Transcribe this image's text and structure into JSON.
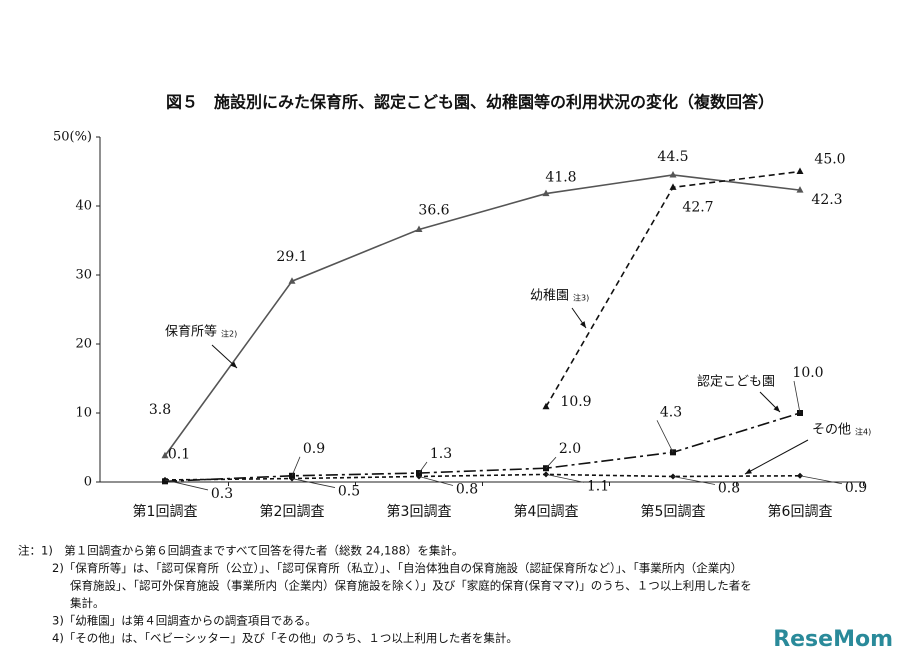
{
  "chart_data": {
    "type": "line",
    "title": "図５　施設別にみた保育所、認定こども園、幼稚園等の利用状況の変化（複数回答）",
    "categories": [
      "第1回調査",
      "第2回調査",
      "第3回調査",
      "第4回調査",
      "第5回調査",
      "第6回調査"
    ],
    "ylim": [
      0,
      50
    ],
    "yticks": [
      0,
      10,
      20,
      30,
      40,
      {
        "value": 50,
        "label": "50(%)"
      }
    ],
    "series": [
      {
        "name": "保育所等",
        "note": "注2)",
        "color": "#555555",
        "dash": "solid",
        "marker": "triangle",
        "values": [
          3.8,
          29.1,
          36.6,
          41.8,
          44.5,
          42.3
        ],
        "value_labels": [
          "3.8",
          "29.1",
          "36.6",
          "41.8",
          "44.5",
          "42.3"
        ]
      },
      {
        "name": "幼稚園",
        "note": "注3)",
        "color": "#111111",
        "dash": "dashed",
        "marker": "triangle",
        "values": [
          null,
          null,
          null,
          10.9,
          42.7,
          45.0
        ],
        "value_labels": [
          null,
          null,
          null,
          "10.9",
          "42.7",
          "45.0"
        ]
      },
      {
        "name": "認定こども園",
        "color": "#111111",
        "dash": "dashdot",
        "marker": "square",
        "values": [
          0.1,
          0.9,
          1.3,
          2.0,
          4.3,
          10.0
        ],
        "value_labels": [
          "0.1",
          "0.9",
          "1.3",
          "2.0",
          "4.3",
          "10.0"
        ]
      },
      {
        "name": "その他",
        "note": "注4)",
        "color": "#111111",
        "dash": "dotted",
        "marker": "diamond",
        "values": [
          0.3,
          0.5,
          0.8,
          1.1,
          0.8,
          0.9
        ],
        "value_labels": [
          "0.3",
          "0.5",
          "0.8",
          "1.1",
          "0.8",
          "0.9"
        ]
      }
    ],
    "notes": [
      "注：1)　第１回調査から第６回調査まですべて回答を得た者（総数 24,188）を集計。",
      "2)「保育所等」は、「認可保育所（公立）」、「認可保育所（私立）」、「自治体独自の保育施設（認証保育所など）」、「事業所内（企業内）",
      "保育施設」、「認可外保育施設（事業所内（企業内）保育施設を除く）」及び「家庭的保育(保育ママ)」のうち、１つ以上利用した者を",
      "集計。",
      "3)「幼稚園」は第４回調査からの調査項目である。",
      "4)「その他」は、「ベビーシッター」及び「その他」のうち、１つ以上利用した者を集計。"
    ],
    "watermark": "ReseMom"
  }
}
